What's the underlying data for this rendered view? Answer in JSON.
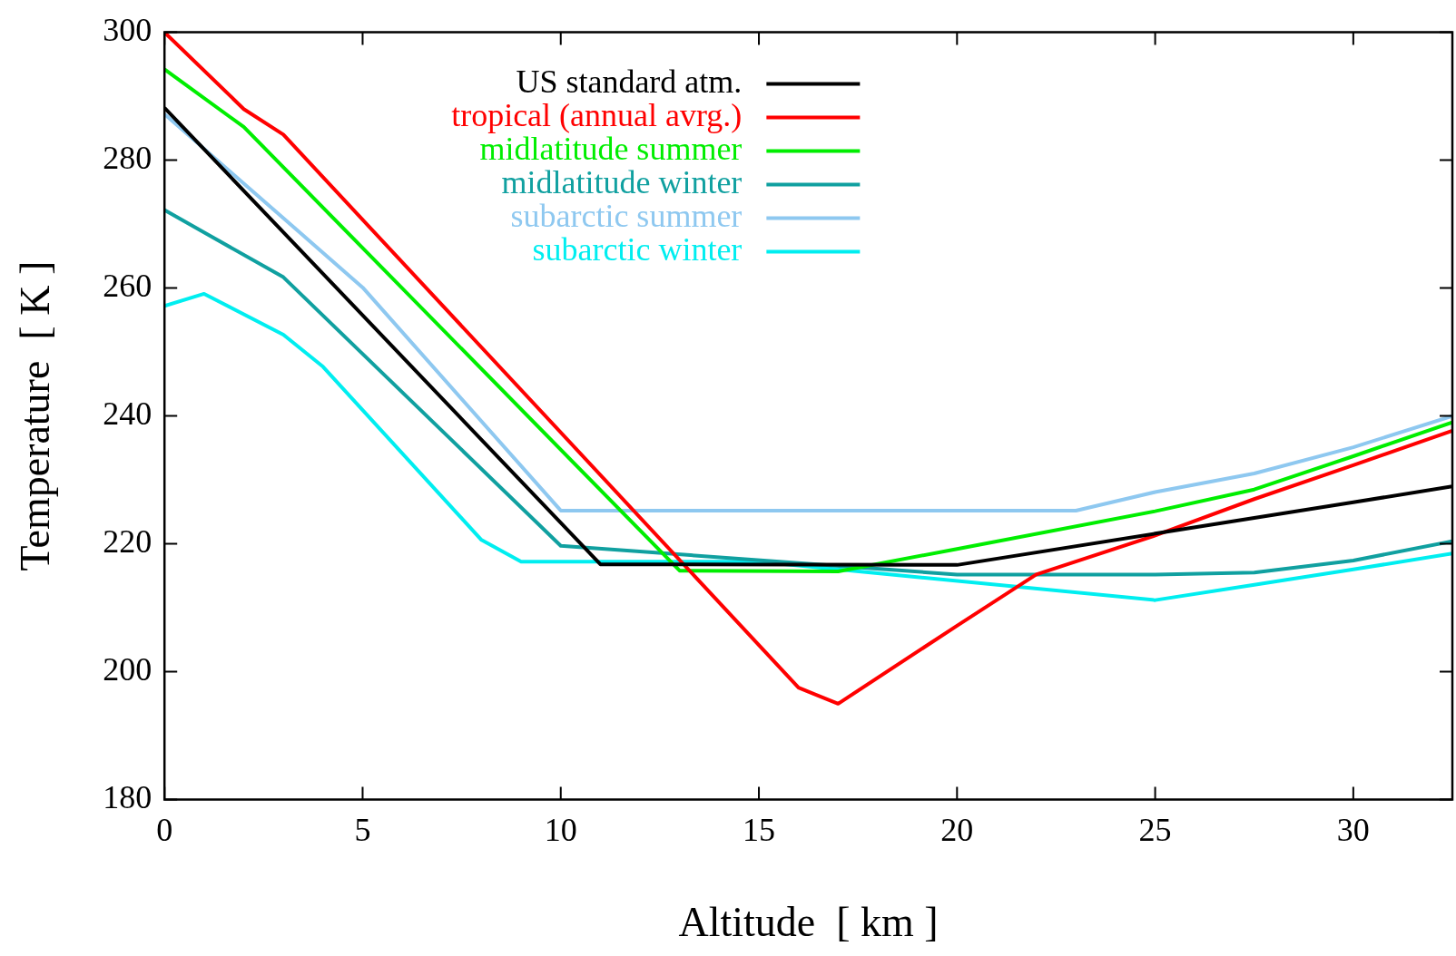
{
  "chart_data": {
    "type": "line",
    "xlabel": "Altitude  [ km ]",
    "ylabel": "Temperature  [ K ]",
    "xlim": [
      0,
      32.5
    ],
    "xticks": [
      0,
      5,
      10,
      15,
      20,
      25,
      30
    ],
    "ylim": [
      180,
      300
    ],
    "yticks": [
      180,
      200,
      220,
      240,
      260,
      280,
      300
    ],
    "legend": "top",
    "marker": "none",
    "series": [
      {
        "name": "US standard atm.",
        "color": "#000000",
        "x": [
          0,
          11,
          20,
          25,
          30,
          32.5
        ],
        "values": [
          288.2,
          216.8,
          216.7,
          221.6,
          226.5,
          229.0
        ]
      },
      {
        "name": "tropical (annual avrg.)",
        "color": "#ff0000",
        "x": [
          0,
          2,
          3,
          16,
          17,
          20,
          22,
          25,
          27.5,
          30,
          32.5
        ],
        "values": [
          300,
          288,
          284,
          197.5,
          195,
          207.2,
          215.2,
          221.3,
          227,
          232.3,
          237.7
        ]
      },
      {
        "name": "midlatitude summer",
        "color": "#00ee00",
        "x": [
          0,
          2,
          13,
          17,
          20,
          25,
          27.5,
          30,
          32.5
        ],
        "values": [
          294.2,
          285.2,
          215.8,
          215.7,
          219.2,
          225.1,
          228.5,
          233.7,
          239
        ]
      },
      {
        "name": "midlatitude winter",
        "color": "#10a0a0",
        "x": [
          0,
          3,
          10,
          20,
          25,
          27.5,
          30,
          32.5
        ],
        "values": [
          272.2,
          261.7,
          219.7,
          215.2,
          215.2,
          215.5,
          217.4,
          220.4
        ]
      },
      {
        "name": "subarctic summer",
        "color": "#8ec8f0",
        "x": [
          0,
          5,
          10,
          23,
          25,
          27.5,
          30,
          32.5
        ],
        "values": [
          287.2,
          260.1,
          225.2,
          225.2,
          228.1,
          231,
          235.1,
          240
        ]
      },
      {
        "name": "subarctic winter",
        "color": "#00eef0",
        "x": [
          0,
          1,
          3,
          4,
          8,
          9,
          15,
          25,
          27.5,
          30,
          32.5
        ],
        "values": [
          257.2,
          259.1,
          252.7,
          247.7,
          220.6,
          217.2,
          217.2,
          211.2,
          213.6,
          216,
          218.5
        ]
      }
    ]
  }
}
